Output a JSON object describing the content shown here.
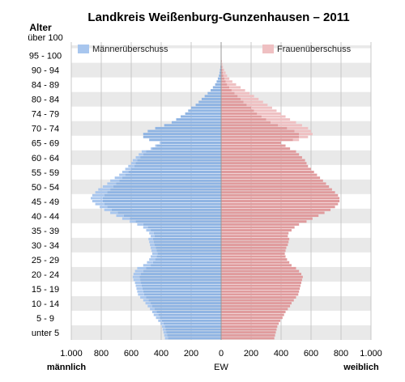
{
  "chart_data": {
    "type": "bar",
    "title": "Landkreis Weißenburg-Gunzenhausen – 2011",
    "y_axis_title": "Alter",
    "x_axis_center_label": "EW",
    "x_axis_left_label": "männlich",
    "x_axis_right_label": "weiblich",
    "legend": {
      "male_surplus": "Männerüberschuss",
      "female_surplus": "Frauenüberschuss"
    },
    "colors": {
      "male": "#8fb4e3",
      "male_surplus": "#a8c6ee",
      "female": "#e09b9d",
      "female_surplus": "#efc0c2",
      "band": "#e9e9e9",
      "grid": "#c8c8c8"
    },
    "xlim": [
      -1000,
      1000
    ],
    "x_ticks": [
      -1000,
      -800,
      -600,
      -400,
      -200,
      0,
      200,
      400,
      600,
      800,
      1000
    ],
    "x_tick_labels": [
      "1.000",
      "800",
      "600",
      "400",
      "200",
      "0",
      "200",
      "400",
      "600",
      "800",
      "1.000"
    ],
    "age_labels": [
      "unter 5",
      "5 - 9",
      "10 - 14",
      "15 - 19",
      "20 - 24",
      "25 - 29",
      "30 - 34",
      "35 - 39",
      "40 - 44",
      "45 - 49",
      "50 - 54",
      "55 - 59",
      "60 - 64",
      "65 - 69",
      "70 - 74",
      "74 - 79",
      "80 - 84",
      "84 - 89",
      "90 - 94",
      "95 - 100",
      "über 100"
    ],
    "ages": [
      0,
      1,
      2,
      3,
      4,
      5,
      6,
      7,
      8,
      9,
      10,
      11,
      12,
      13,
      14,
      15,
      16,
      17,
      18,
      19,
      20,
      21,
      22,
      23,
      24,
      25,
      26,
      27,
      28,
      29,
      30,
      31,
      32,
      33,
      34,
      35,
      36,
      37,
      38,
      39,
      40,
      41,
      42,
      43,
      44,
      45,
      46,
      47,
      48,
      49,
      50,
      51,
      52,
      53,
      54,
      55,
      56,
      57,
      58,
      59,
      60,
      61,
      62,
      63,
      64,
      65,
      66,
      67,
      68,
      69,
      70,
      71,
      72,
      73,
      74,
      75,
      76,
      77,
      78,
      79,
      80,
      81,
      82,
      83,
      84,
      85,
      86,
      87,
      88,
      89,
      90,
      91,
      92,
      93,
      94,
      95,
      96,
      97,
      98,
      99,
      100
    ],
    "male": [
      375,
      380,
      385,
      390,
      395,
      405,
      420,
      435,
      450,
      460,
      475,
      490,
      505,
      520,
      540,
      555,
      560,
      565,
      570,
      575,
      585,
      590,
      585,
      575,
      560,
      520,
      495,
      480,
      470,
      460,
      465,
      470,
      475,
      480,
      485,
      470,
      480,
      500,
      520,
      560,
      610,
      660,
      700,
      740,
      780,
      810,
      840,
      860,
      870,
      860,
      840,
      820,
      790,
      760,
      740,
      710,
      680,
      660,
      640,
      620,
      600,
      590,
      570,
      550,
      530,
      470,
      440,
      410,
      480,
      520,
      520,
      490,
      440,
      380,
      330,
      300,
      270,
      240,
      220,
      200,
      170,
      150,
      130,
      110,
      90,
      70,
      55,
      40,
      30,
      22,
      15,
      11,
      8,
      5,
      3,
      2,
      1,
      1,
      0,
      0,
      0
    ],
    "female": [
      355,
      360,
      365,
      370,
      375,
      385,
      395,
      410,
      420,
      430,
      445,
      460,
      470,
      485,
      500,
      515,
      520,
      525,
      530,
      535,
      540,
      545,
      535,
      520,
      500,
      470,
      455,
      440,
      430,
      425,
      430,
      435,
      445,
      450,
      455,
      445,
      450,
      470,
      490,
      520,
      570,
      610,
      650,
      690,
      730,
      760,
      780,
      790,
      790,
      780,
      760,
      740,
      720,
      700,
      680,
      660,
      640,
      620,
      600,
      580,
      570,
      560,
      540,
      520,
      500,
      460,
      430,
      400,
      520,
      580,
      610,
      600,
      580,
      540,
      500,
      460,
      430,
      400,
      370,
      340,
      310,
      280,
      250,
      220,
      190,
      160,
      130,
      100,
      75,
      55,
      40,
      30,
      20,
      12,
      8,
      5,
      3,
      2,
      1,
      0,
      0
    ]
  }
}
